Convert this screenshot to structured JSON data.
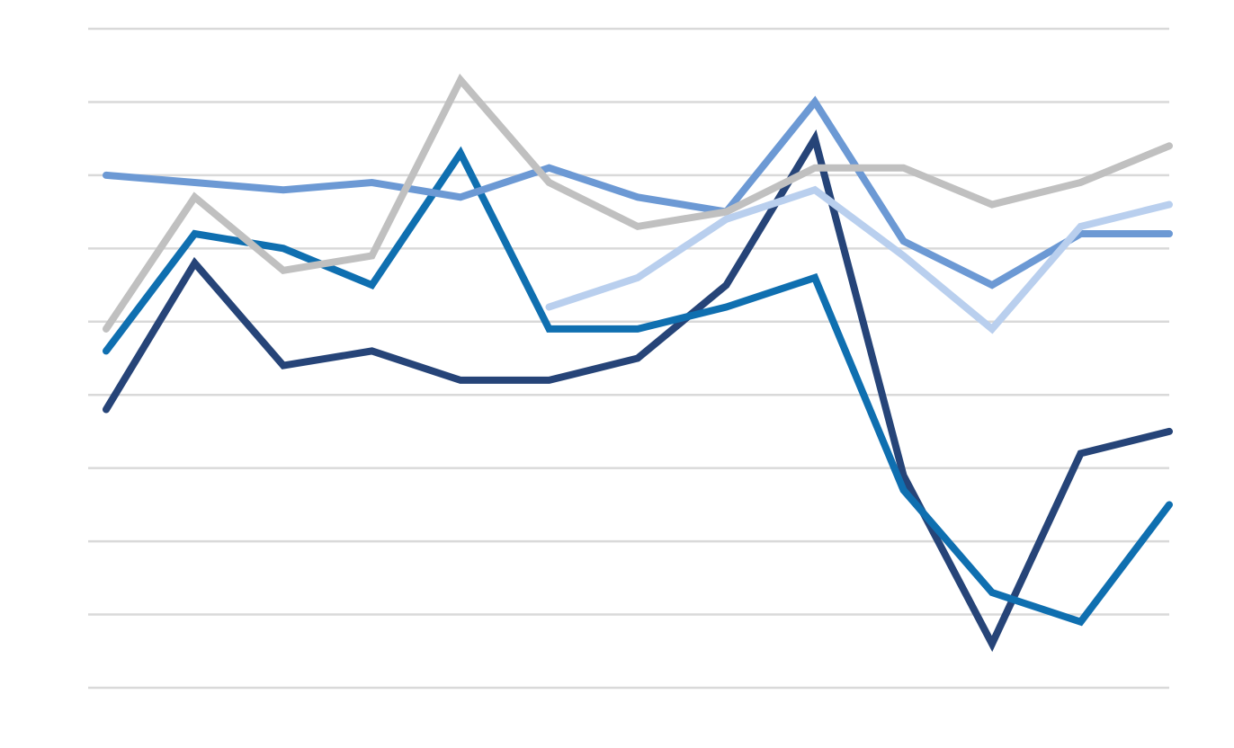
{
  "chart_data": {
    "type": "line",
    "title": "",
    "xlabel": "",
    "ylabel": "",
    "grid": true,
    "legend": "none",
    "x": [
      1,
      2,
      3,
      4,
      5,
      6,
      7,
      8,
      9,
      10,
      11,
      12,
      13
    ],
    "ylim": [
      0,
      9
    ],
    "gridline_values": [
      0,
      1,
      2,
      3,
      4,
      5,
      6,
      7,
      8,
      9
    ],
    "series": [
      {
        "color": "#264478",
        "values": [
          3.8,
          5.8,
          4.4,
          4.6,
          4.2,
          4.2,
          4.5,
          5.5,
          7.5,
          2.9,
          0.6,
          3.2,
          3.5
        ]
      },
      {
        "color": "#0F6FB0",
        "values": [
          4.6,
          6.2,
          6.0,
          5.5,
          7.3,
          4.9,
          4.9,
          5.2,
          5.6,
          2.7,
          1.3,
          0.9,
          2.5
        ]
      },
      {
        "color": "#6C99D4",
        "values": [
          7.0,
          6.9,
          6.8,
          6.9,
          6.7,
          7.1,
          6.7,
          6.5,
          8.0,
          6.1,
          5.5,
          6.2,
          6.2
        ]
      },
      {
        "color": "#C0C0C0",
        "values": [
          4.9,
          6.7,
          5.7,
          5.9,
          8.3,
          6.9,
          6.3,
          6.5,
          7.1,
          7.1,
          6.6,
          6.9,
          7.4
        ]
      },
      {
        "color": "#B9CFEE",
        "values": [
          null,
          null,
          null,
          null,
          null,
          5.2,
          5.6,
          6.4,
          6.8,
          5.9,
          4.9,
          6.3,
          6.6
        ]
      }
    ]
  }
}
